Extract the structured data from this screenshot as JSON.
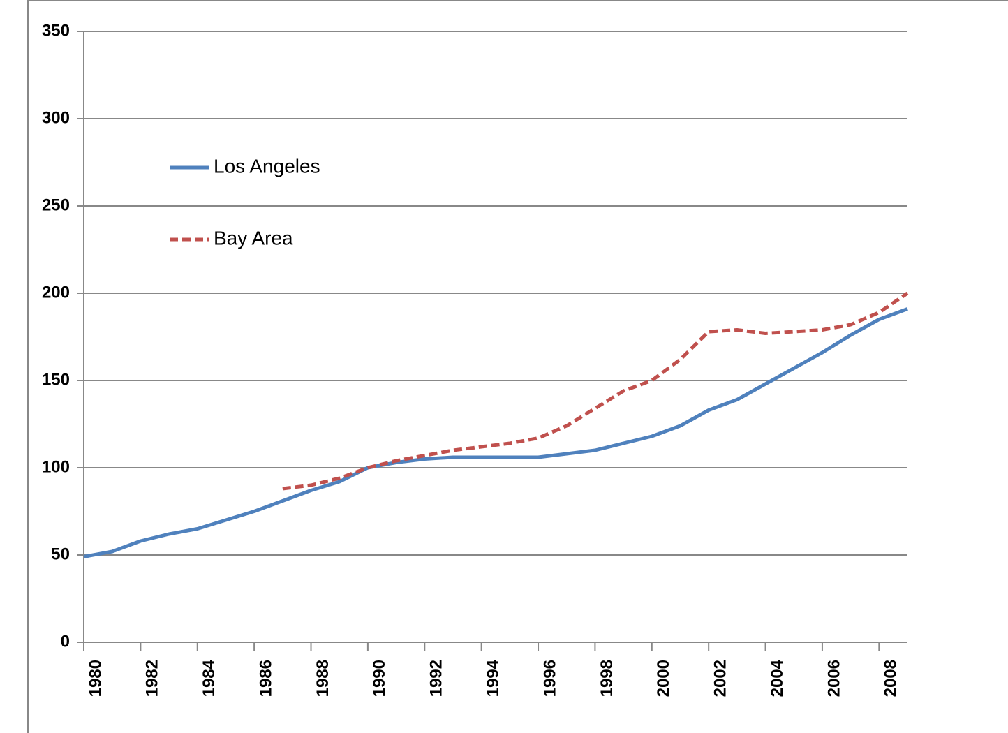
{
  "chart_data": {
    "type": "line",
    "x": [
      1980,
      1981,
      1982,
      1983,
      1984,
      1985,
      1986,
      1987,
      1988,
      1989,
      1990,
      1991,
      1992,
      1993,
      1994,
      1995,
      1996,
      1997,
      1998,
      1999,
      2000,
      2001,
      2002,
      2003,
      2004,
      2005,
      2006,
      2007,
      2008,
      2009
    ],
    "series": [
      {
        "name": "Los Angeles",
        "color": "#4f81bd",
        "dash": false,
        "values": [
          49,
          52,
          58,
          62,
          65,
          70,
          75,
          81,
          87,
          92,
          100,
          103,
          105,
          106,
          106,
          106,
          106,
          108,
          110,
          114,
          118,
          124,
          133,
          139,
          148,
          157,
          166,
          176,
          185,
          191
        ]
      },
      {
        "name": "Bay Area",
        "color": "#c0504d",
        "dash": true,
        "values": [
          null,
          null,
          null,
          null,
          null,
          null,
          null,
          88,
          90,
          94,
          100,
          104,
          107,
          110,
          112,
          114,
          117,
          124,
          134,
          144,
          150,
          162,
          178,
          179,
          177,
          178,
          179,
          182,
          189,
          200
        ]
      }
    ],
    "xlim": [
      1980,
      2009
    ],
    "xticks": [
      1980,
      1982,
      1984,
      1986,
      1988,
      1990,
      1992,
      1994,
      1996,
      1998,
      2000,
      2002,
      2004,
      2006,
      2008
    ],
    "ylim": [
      0,
      350
    ],
    "yticks": [
      0,
      50,
      100,
      150,
      200,
      250,
      300,
      350
    ],
    "grid": true,
    "legend": "upper-left"
  }
}
